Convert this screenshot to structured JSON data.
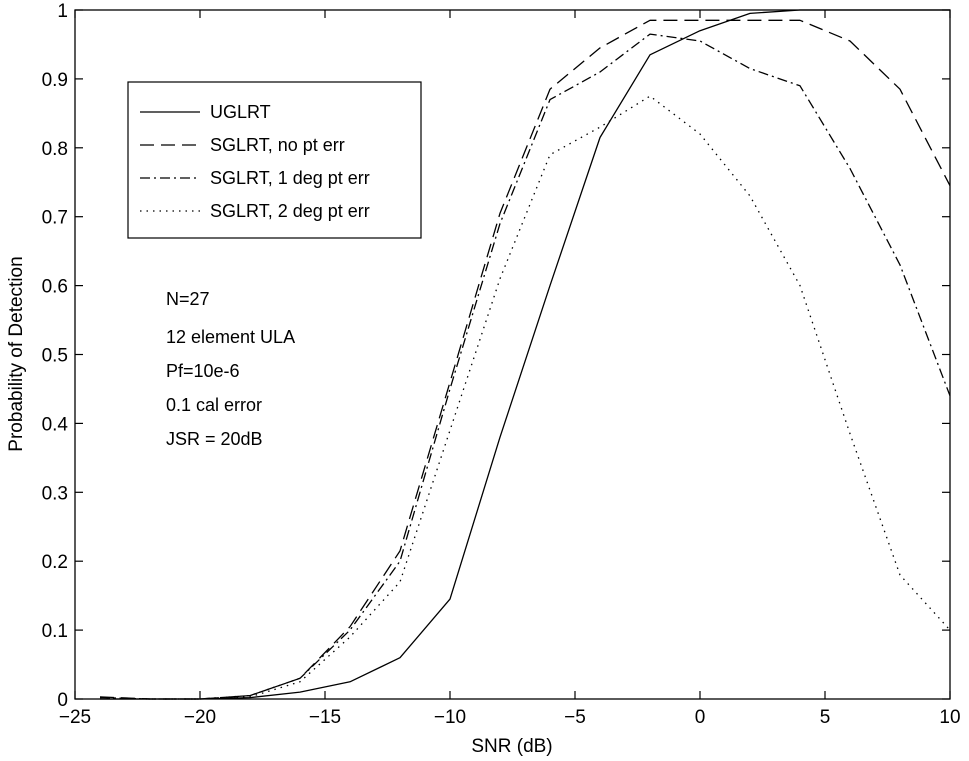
{
  "chart_data": {
    "type": "line",
    "title": "",
    "xlabel": "SNR (dB)",
    "ylabel": "Probability of Detection",
    "xlim": [
      -25,
      10
    ],
    "ylim": [
      0,
      1
    ],
    "xticks": [
      -25,
      -20,
      -15,
      -10,
      -5,
      0,
      5,
      10
    ],
    "yticks": [
      0,
      0.1,
      0.2,
      0.3,
      0.4,
      0.5,
      0.6,
      0.7,
      0.8,
      0.9,
      1
    ],
    "grid": false,
    "legend_position": "top-left",
    "x": [
      -24,
      -22,
      -20,
      -18,
      -16,
      -14,
      -12,
      -10,
      -8,
      -6,
      -4,
      -2,
      0,
      2,
      4,
      6,
      8,
      10
    ],
    "series": [
      {
        "name": "UGLRT",
        "line_style": "solid",
        "values": [
          0.0,
          0.0,
          0.0,
          0.002,
          0.01,
          0.025,
          0.06,
          0.145,
          0.38,
          0.6,
          0.815,
          0.935,
          0.97,
          0.995,
          1.0,
          1.0,
          1.0,
          1.0
        ]
      },
      {
        "name": "SGLRT, no pt err",
        "line_style": "dashed",
        "values": [
          0.003,
          0.0,
          0.0,
          0.005,
          0.03,
          0.105,
          0.215,
          0.46,
          0.705,
          0.885,
          0.945,
          0.985,
          0.985,
          0.985,
          0.985,
          0.955,
          0.885,
          0.745
        ]
      },
      {
        "name": "SGLRT, 1 deg pt err",
        "line_style": "dashdot",
        "values": [
          0.002,
          0.0,
          0.0,
          0.005,
          0.03,
          0.1,
          0.2,
          0.45,
          0.69,
          0.87,
          0.91,
          0.965,
          0.955,
          0.915,
          0.89,
          0.77,
          0.63,
          0.44
        ]
      },
      {
        "name": "SGLRT, 2 deg pt err",
        "line_style": "dotted",
        "values": [
          0.002,
          0.0,
          0.0,
          0.003,
          0.025,
          0.09,
          0.17,
          0.39,
          0.61,
          0.79,
          0.83,
          0.875,
          0.82,
          0.73,
          0.6,
          0.385,
          0.18,
          0.1
        ]
      }
    ],
    "annotations": [
      "N=27",
      "12 element ULA",
      "Pf=10e-6",
      "0.1 cal error",
      "JSR = 20dB"
    ]
  }
}
